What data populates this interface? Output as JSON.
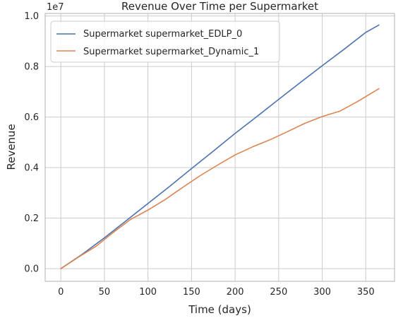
{
  "chart_data": {
    "type": "line",
    "title": "Revenue Over Time per Supermarket",
    "xlabel": "Time (days)",
    "ylabel": "Revenue",
    "y_offset_label": "1e7",
    "xlim": [
      -18,
      383
    ],
    "ylim": [
      -0.05,
      1.01
    ],
    "x_ticks": [
      0,
      50,
      100,
      150,
      200,
      250,
      300,
      350
    ],
    "x_tick_labels": [
      "0",
      "50",
      "100",
      "150",
      "200",
      "250",
      "300",
      "350"
    ],
    "y_ticks": [
      0.0,
      0.2,
      0.4,
      0.6,
      0.8,
      1.0
    ],
    "y_tick_labels": [
      "0.0",
      "0.2",
      "0.4",
      "0.6",
      "0.8",
      "1.0"
    ],
    "grid": true,
    "legend_position": "upper-left",
    "series": [
      {
        "name": "Supermarket supermarket_EDLP_0",
        "color": "#4c72b0",
        "x": [
          0,
          25,
          50,
          75,
          100,
          125,
          150,
          175,
          200,
          225,
          250,
          275,
          300,
          325,
          350,
          365
        ],
        "y": [
          0.0,
          0.058,
          0.122,
          0.19,
          0.258,
          0.326,
          0.396,
          0.465,
          0.535,
          0.602,
          0.67,
          0.737,
          0.803,
          0.868,
          0.935,
          0.964
        ]
      },
      {
        "name": "Supermarket supermarket_Dynamic_1",
        "color": "#dd8452",
        "x": [
          0,
          20,
          40,
          60,
          80,
          100,
          120,
          140,
          160,
          180,
          200,
          220,
          240,
          260,
          280,
          300,
          320,
          340,
          365
        ],
        "y": [
          0.0,
          0.045,
          0.088,
          0.143,
          0.195,
          0.232,
          0.274,
          0.322,
          0.368,
          0.41,
          0.45,
          0.482,
          0.51,
          0.542,
          0.575,
          0.602,
          0.623,
          0.66,
          0.712
        ]
      }
    ]
  }
}
